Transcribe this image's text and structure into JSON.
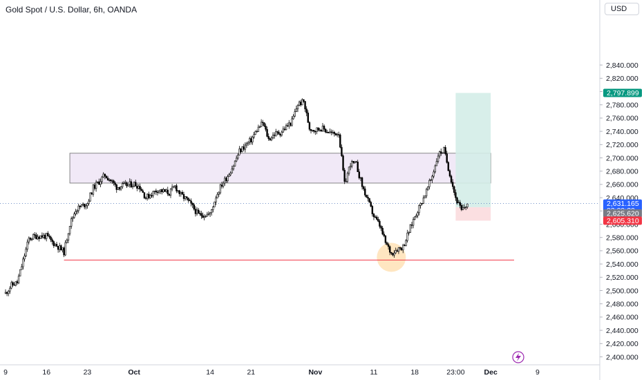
{
  "header": {
    "title": "Gold Spot / U.S. Dollar, 6h, OANDA",
    "currency": "USD"
  },
  "colors": {
    "up": "#ffffff",
    "down": "#000000",
    "wick": "#000000",
    "zone_fill": "#f1e9f7",
    "zone_stroke": "#6b6b6b",
    "target_fill": "#d4ede8",
    "stop_fill": "#fbdcde",
    "support_line": "#f23645",
    "highlight": "#ffe0b2",
    "price_tag_top": "#089981",
    "price_tag_current": "#2962ff",
    "price_tag_mid": "#787b86",
    "price_tag_stop": "#f23645"
  },
  "chart_data": {
    "type": "candlestick",
    "y_axis": {
      "min": 2390,
      "max": 2850,
      "ticks": [
        2400,
        2420,
        2440,
        2460,
        2480,
        2500,
        2520,
        2540,
        2560,
        2580,
        2600,
        2620,
        2640,
        2660,
        2680,
        2700,
        2720,
        2740,
        2760,
        2780,
        2800,
        2820,
        2840
      ],
      "tick_labels": [
        "2,400.000",
        "2,420.000",
        "2,440.000",
        "2,460.000",
        "2,480.000",
        "2,500.000",
        "2,520.000",
        "2,540.000",
        "2,560.000",
        "2,580.000",
        "2,600.000",
        "2,620.000",
        "2,640.000",
        "2,660.000",
        "2,680.000",
        "2,700.000",
        "2,720.000",
        "2,740.000",
        "2,760.000",
        "2,780.000",
        "2,800.000",
        "2,820.000",
        "2,840.000"
      ]
    },
    "x_axis": {
      "labels": [
        {
          "text": "9",
          "date": "2024-09-09"
        },
        {
          "text": "16",
          "date": "2024-09-16"
        },
        {
          "text": "23",
          "date": "2024-09-23"
        },
        {
          "text": "Oct",
          "date": "2024-10-01"
        },
        {
          "text": "14",
          "date": "2024-10-14"
        },
        {
          "text": "21",
          "date": "2024-10-21"
        },
        {
          "text": "Nov",
          "date": "2024-11-01"
        },
        {
          "text": "11",
          "date": "2024-11-11"
        },
        {
          "text": "18",
          "date": "2024-11-18"
        },
        {
          "text": "23:00",
          "date": "2024-11-25"
        },
        {
          "text": "Dec",
          "date": "2024-12-01"
        },
        {
          "text": "9",
          "date": "2024-12-09"
        }
      ],
      "bold": [
        "Oct",
        "Nov",
        "Dec"
      ]
    },
    "anchors": [
      [
        "2024-09-09",
        2496
      ],
      [
        "2024-09-10",
        2508
      ],
      [
        "2024-09-11",
        2512
      ],
      [
        "2024-09-12",
        2545
      ],
      [
        "2024-09-13",
        2578
      ],
      [
        "2024-09-14",
        2582
      ],
      [
        "2024-09-16",
        2582
      ],
      [
        "2024-09-17",
        2573
      ],
      [
        "2024-09-18",
        2566
      ],
      [
        "2024-09-19",
        2558
      ],
      [
        "2024-09-20",
        2600
      ],
      [
        "2024-09-21",
        2622
      ],
      [
        "2024-09-23",
        2632
      ],
      [
        "2024-09-24",
        2655
      ],
      [
        "2024-09-25",
        2664
      ],
      [
        "2024-09-26",
        2674
      ],
      [
        "2024-09-27",
        2666
      ],
      [
        "2024-09-28",
        2656
      ],
      [
        "2024-10-01",
        2661
      ],
      [
        "2024-10-02",
        2656
      ],
      [
        "2024-10-03",
        2640
      ],
      [
        "2024-10-05",
        2652
      ],
      [
        "2024-10-07",
        2647
      ],
      [
        "2024-10-08",
        2657
      ],
      [
        "2024-10-09",
        2644
      ],
      [
        "2024-10-10",
        2637
      ],
      [
        "2024-10-11",
        2626
      ],
      [
        "2024-10-12",
        2614
      ],
      [
        "2024-10-14",
        2615
      ],
      [
        "2024-10-15",
        2642
      ],
      [
        "2024-10-16",
        2660
      ],
      [
        "2024-10-17",
        2673
      ],
      [
        "2024-10-18",
        2689
      ],
      [
        "2024-10-19",
        2710
      ],
      [
        "2024-10-21",
        2727
      ],
      [
        "2024-10-22",
        2742
      ],
      [
        "2024-10-23",
        2753
      ],
      [
        "2024-10-24",
        2728
      ],
      [
        "2024-10-25",
        2736
      ],
      [
        "2024-10-26",
        2738
      ],
      [
        "2024-10-28",
        2755
      ],
      [
        "2024-10-29",
        2781
      ],
      [
        "2024-10-30",
        2785
      ],
      [
        "2024-10-31",
        2745
      ],
      [
        "2024-11-01",
        2742
      ],
      [
        "2024-11-02",
        2745
      ],
      [
        "2024-11-04",
        2736
      ],
      [
        "2024-11-05",
        2738
      ],
      [
        "2024-11-06",
        2660
      ],
      [
        "2024-11-07",
        2692
      ],
      [
        "2024-11-08",
        2690
      ],
      [
        "2024-11-09",
        2658
      ],
      [
        "2024-11-11",
        2612
      ],
      [
        "2024-11-12",
        2598
      ],
      [
        "2024-11-13",
        2572
      ],
      [
        "2024-11-14",
        2556
      ],
      [
        "2024-11-15",
        2563
      ],
      [
        "2024-11-16",
        2566
      ],
      [
        "2024-11-18",
        2612
      ],
      [
        "2024-11-19",
        2630
      ],
      [
        "2024-11-20",
        2650
      ],
      [
        "2024-11-21",
        2673
      ],
      [
        "2024-11-22",
        2705
      ],
      [
        "2024-11-23",
        2712
      ],
      [
        "2024-11-25",
        2640
      ],
      [
        "2024-11-26",
        2620
      ],
      [
        "2024-11-27",
        2631
      ]
    ],
    "zones": [
      {
        "type": "resistance-box",
        "from": "2024-09-20",
        "to": "2024-12-01",
        "top": 2707,
        "bottom": 2662
      },
      {
        "type": "target-box",
        "from": "2024-11-25",
        "to": "2024-12-01",
        "top": 2797.899,
        "bottom": 2625.62
      },
      {
        "type": "stop-box",
        "from": "2024-11-25",
        "to": "2024-12-01",
        "top": 2625.62,
        "bottom": 2605.31
      }
    ],
    "lines": [
      {
        "type": "support",
        "from": "2024-09-19",
        "to": "2024-12-05",
        "price": 2546
      },
      {
        "type": "current-price",
        "price": 2631.165
      }
    ],
    "price_tags": [
      {
        "price": 2797.899,
        "label": "2,797.899",
        "color": "#089981"
      },
      {
        "price": 2631.165,
        "label": "2,631.165",
        "sub": "03:09:20",
        "color": "#2962ff"
      },
      {
        "price": 2625.62,
        "label": "2,625.620",
        "color": "#787b86"
      },
      {
        "price": 2605.31,
        "label": "2,605.310",
        "color": "#f23645"
      }
    ],
    "highlight": {
      "date": "2024-11-14",
      "price": 2550
    }
  }
}
